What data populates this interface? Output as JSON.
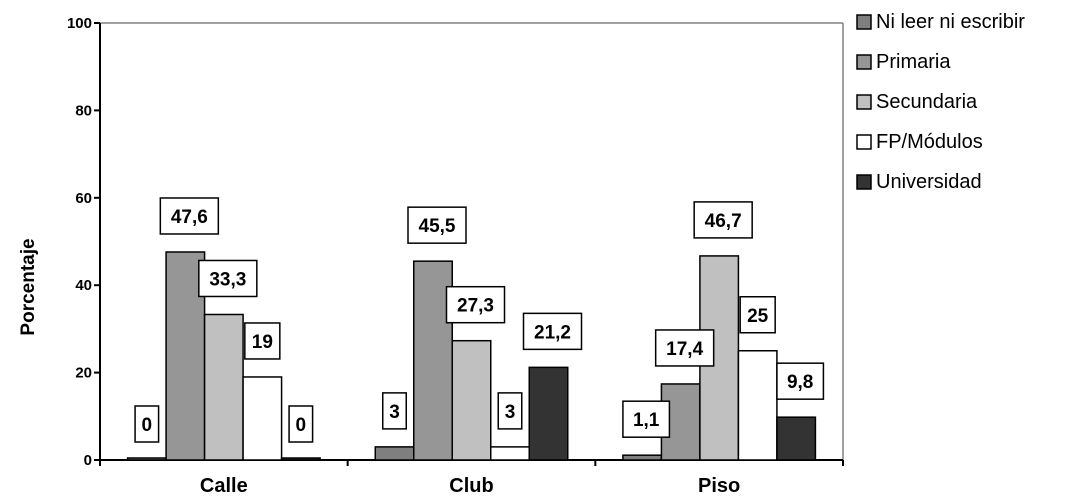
{
  "chart_data": {
    "type": "bar",
    "title": "",
    "xlabel": "",
    "ylabel": "Porcentaje",
    "ylim": [
      0,
      100
    ],
    "yticks": [
      0,
      20,
      40,
      60,
      80,
      100
    ],
    "grid": false,
    "legend_position": "right",
    "categories": [
      "Calle",
      "Club",
      "Piso"
    ],
    "series": [
      {
        "name": "Ni leer ni escribir",
        "color": "#7f7f7f",
        "values": [
          0,
          3,
          1.1
        ],
        "labels": [
          "0",
          "3",
          "1,1"
        ]
      },
      {
        "name": "Primaria",
        "color": "#969696",
        "values": [
          47.6,
          45.5,
          17.4
        ],
        "labels": [
          "47,6",
          "45,5",
          "17,4"
        ]
      },
      {
        "name": "Secundaria",
        "color": "#c0c0c0",
        "values": [
          33.3,
          27.3,
          46.7
        ],
        "labels": [
          "33,3",
          "27,3",
          "46,7"
        ]
      },
      {
        "name": "FP/Módulos",
        "color": "#ffffff",
        "values": [
          19,
          3,
          25
        ],
        "labels": [
          "19",
          "3",
          "25"
        ]
      },
      {
        "name": "Universidad",
        "color": "#333333",
        "values": [
          0,
          21.2,
          9.8
        ],
        "labels": [
          "0",
          "21,2",
          "9,8"
        ]
      }
    ]
  }
}
